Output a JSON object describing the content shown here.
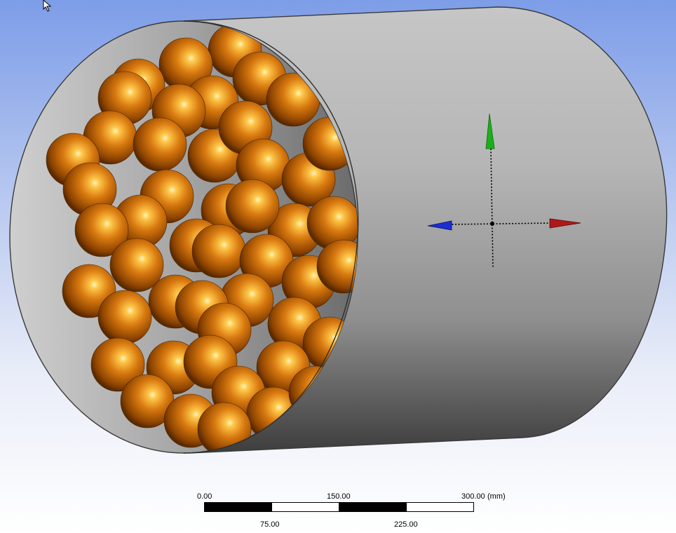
{
  "scale_bar": {
    "units": "(mm)",
    "top_labels": [
      "0.00",
      "150.00",
      "300.00"
    ],
    "bottom_labels": [
      "75.00",
      "225.00"
    ]
  },
  "colors": {
    "sphere": "#d9790f",
    "sphere_highlight": "#fff3b0",
    "sphere_shadow": "#5a2a00",
    "cylinder_light": "#bdbdbd",
    "cylinder_dark": "#3e3e3e",
    "axis_x": "#b01818",
    "axis_y": "#1bb01b",
    "axis_z": "#1a2fd0"
  },
  "icons": [
    "mouse-cursor-icon",
    "triad-axis-icon"
  ]
}
